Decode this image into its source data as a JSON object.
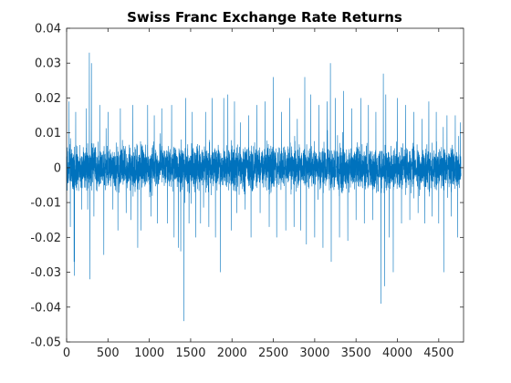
{
  "chart_data": {
    "type": "line",
    "title": "Swiss Franc Exchange Rate Returns",
    "xlabel": "",
    "ylabel": "",
    "xlim": [
      0,
      4800
    ],
    "ylim": [
      -0.05,
      0.04
    ],
    "x_ticks": [
      0,
      500,
      1000,
      1500,
      2000,
      2500,
      3000,
      3500,
      4000,
      4500
    ],
    "x_tick_labels": [
      "0",
      "500",
      "1000",
      "1500",
      "2000",
      "2500",
      "3000",
      "3500",
      "4000",
      "4500"
    ],
    "y_ticks": [
      -0.05,
      -0.04,
      -0.03,
      -0.02,
      -0.01,
      0,
      0.01,
      0.02,
      0.03,
      0.04
    ],
    "y_tick_labels": [
      "-0.05",
      "-0.04",
      "-0.03",
      "-0.02",
      "-0.01",
      "0",
      "0.01",
      "0.02",
      "0.03",
      "0.04"
    ],
    "grid": false,
    "box": true,
    "colors": {
      "series": "#0072BD",
      "axes": "#262626"
    },
    "series": [
      {
        "n_points": 4770,
        "base_band": [
          -0.0065,
          0.0065
        ],
        "excursions": [
          [
            30,
            0.019
          ],
          [
            45,
            -0.017
          ],
          [
            90,
            -0.027
          ],
          [
            95,
            -0.031
          ],
          [
            110,
            0.016
          ],
          [
            180,
            -0.012
          ],
          [
            240,
            0.017
          ],
          [
            255,
            -0.012
          ],
          [
            275,
            0.033
          ],
          [
            280,
            -0.032
          ],
          [
            300,
            0.03
          ],
          [
            330,
            -0.014
          ],
          [
            400,
            0.018
          ],
          [
            450,
            -0.025
          ],
          [
            500,
            0.016
          ],
          [
            560,
            -0.012
          ],
          [
            620,
            -0.018
          ],
          [
            650,
            0.017
          ],
          [
            720,
            -0.013
          ],
          [
            780,
            -0.015
          ],
          [
            800,
            0.018
          ],
          [
            860,
            -0.023
          ],
          [
            900,
            -0.018
          ],
          [
            980,
            0.018
          ],
          [
            1020,
            -0.014
          ],
          [
            1060,
            0.015
          ],
          [
            1100,
            -0.016
          ],
          [
            1150,
            0.017
          ],
          [
            1220,
            -0.016
          ],
          [
            1270,
            0.018
          ],
          [
            1300,
            -0.02
          ],
          [
            1350,
            -0.023
          ],
          [
            1380,
            -0.024
          ],
          [
            1420,
            -0.044
          ],
          [
            1440,
            0.02
          ],
          [
            1480,
            -0.016
          ],
          [
            1520,
            0.016
          ],
          [
            1560,
            -0.02
          ],
          [
            1620,
            -0.016
          ],
          [
            1680,
            0.016
          ],
          [
            1720,
            -0.017
          ],
          [
            1760,
            0.02
          ],
          [
            1800,
            -0.02
          ],
          [
            1860,
            -0.03
          ],
          [
            1900,
            0.02
          ],
          [
            1950,
            0.021
          ],
          [
            1990,
            -0.018
          ],
          [
            2030,
            0.019
          ],
          [
            2060,
            -0.013
          ],
          [
            2100,
            0.013
          ],
          [
            2160,
            -0.012
          ],
          [
            2200,
            0.015
          ],
          [
            2230,
            -0.02
          ],
          [
            2300,
            0.018
          ],
          [
            2340,
            -0.013
          ],
          [
            2400,
            0.019
          ],
          [
            2450,
            -0.017
          ],
          [
            2500,
            0.026
          ],
          [
            2540,
            -0.02
          ],
          [
            2600,
            0.016
          ],
          [
            2650,
            -0.018
          ],
          [
            2700,
            0.02
          ],
          [
            2750,
            -0.017
          ],
          [
            2790,
            0.014
          ],
          [
            2830,
            -0.018
          ],
          [
            2880,
            0.026
          ],
          [
            2900,
            -0.022
          ],
          [
            2950,
            0.021
          ],
          [
            3000,
            -0.02
          ],
          [
            3050,
            0.018
          ],
          [
            3100,
            -0.023
          ],
          [
            3150,
            0.019
          ],
          [
            3190,
            0.03
          ],
          [
            3200,
            -0.027
          ],
          [
            3250,
            0.02
          ],
          [
            3300,
            -0.02
          ],
          [
            3350,
            0.022
          ],
          [
            3400,
            -0.021
          ],
          [
            3450,
            0.017
          ],
          [
            3500,
            -0.015
          ],
          [
            3560,
            0.02
          ],
          [
            3600,
            -0.016
          ],
          [
            3650,
            0.018
          ],
          [
            3700,
            -0.015
          ],
          [
            3740,
            0.016
          ],
          [
            3800,
            -0.039
          ],
          [
            3830,
            0.027
          ],
          [
            3845,
            -0.034
          ],
          [
            3860,
            0.021
          ],
          [
            3900,
            -0.02
          ],
          [
            3950,
            -0.03
          ],
          [
            4000,
            0.02
          ],
          [
            4050,
            -0.016
          ],
          [
            4100,
            0.018
          ],
          [
            4150,
            -0.015
          ],
          [
            4200,
            0.016
          ],
          [
            4250,
            -0.013
          ],
          [
            4300,
            0.014
          ],
          [
            4330,
            -0.016
          ],
          [
            4380,
            0.019
          ],
          [
            4420,
            -0.014
          ],
          [
            4470,
            0.016
          ],
          [
            4500,
            -0.016
          ],
          [
            4560,
            -0.03
          ],
          [
            4600,
            0.015
          ],
          [
            4650,
            -0.014
          ],
          [
            4700,
            0.015
          ],
          [
            4730,
            -0.02
          ],
          [
            4760,
            0.013
          ]
        ]
      }
    ]
  }
}
